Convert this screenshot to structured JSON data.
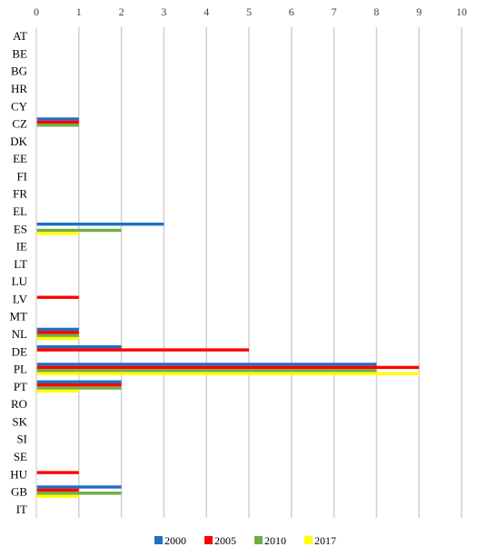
{
  "chart_data": {
    "type": "bar",
    "orientation": "horizontal",
    "title": "",
    "xlabel": "",
    "ylabel": "",
    "xlim": [
      0,
      10
    ],
    "x_ticks": [
      "0",
      "1",
      "2",
      "3",
      "4",
      "5",
      "6",
      "7",
      "8",
      "9",
      "10"
    ],
    "x_axis_position": "top",
    "grid": true,
    "legend_position": "bottom",
    "categories": [
      "AT",
      "BE",
      "BG",
      "HR",
      "CY",
      "CZ",
      "DK",
      "EE",
      "FI",
      "FR",
      "EL",
      "ES",
      "IE",
      "LT",
      "LU",
      "LV",
      "MT",
      "NL",
      "DE",
      "PL",
      "PT",
      "RO",
      "SK",
      "SI",
      "SE",
      "HU",
      "GB",
      "IT"
    ],
    "series": [
      {
        "name": "2000",
        "color": "#1f6fc0",
        "values": [
          0,
          0,
          0,
          0,
          0,
          1,
          0,
          0,
          0,
          0,
          0,
          3,
          0,
          0,
          0,
          0,
          0,
          1,
          2,
          8,
          2,
          0,
          0,
          0,
          0,
          0,
          2,
          0
        ]
      },
      {
        "name": "2005",
        "color": "#ff0000",
        "values": [
          0,
          0,
          0,
          0,
          0,
          1,
          0,
          0,
          0,
          0,
          0,
          0,
          0,
          0,
          0,
          1,
          0,
          1,
          5,
          9,
          2,
          0,
          0,
          0,
          0,
          1,
          1,
          0
        ]
      },
      {
        "name": "2010",
        "color": "#70ad47",
        "values": [
          0,
          0,
          0,
          0,
          0,
          1,
          0,
          0,
          0,
          0,
          0,
          2,
          0,
          0,
          0,
          0,
          0,
          1,
          0,
          8,
          2,
          0,
          0,
          0,
          0,
          0,
          2,
          0
        ]
      },
      {
        "name": "2017",
        "color": "#ffff00",
        "values": [
          0,
          0,
          0,
          0,
          0,
          0,
          0,
          0,
          0,
          0,
          0,
          1,
          0,
          0,
          0,
          0,
          0,
          1,
          0,
          9,
          1,
          0,
          0,
          0,
          0,
          0,
          1,
          0
        ]
      }
    ]
  }
}
